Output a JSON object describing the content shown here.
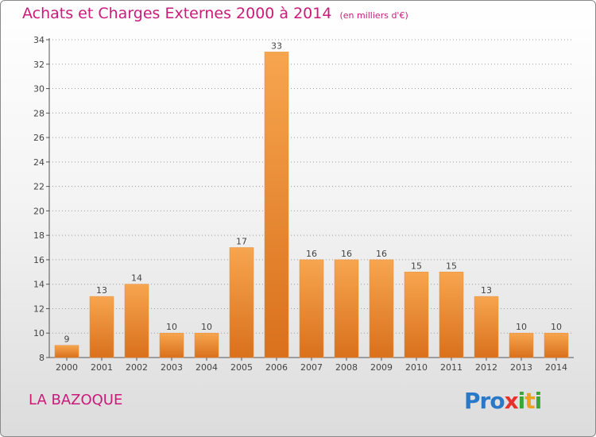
{
  "title": "Achats et Charges Externes 2000 à 2014",
  "unit_label": "(en milliers d'€)",
  "town": "LA BAZOQUE",
  "logo_text": "Proxiti",
  "colors": {
    "title": "#cc1a7a",
    "bar_light": "#f7a54f",
    "bar_dark": "#d9701c",
    "grid": "#9a9a9a"
  },
  "chart_data": {
    "type": "bar",
    "title": "Achats et Charges Externes 2000 à 2014",
    "subtitle": "(en milliers d'€)",
    "categories": [
      "2000",
      "2001",
      "2002",
      "2003",
      "2004",
      "2005",
      "2006",
      "2007",
      "2008",
      "2009",
      "2010",
      "2011",
      "2012",
      "2013",
      "2014"
    ],
    "values": [
      9,
      13,
      14,
      10,
      10,
      17,
      33,
      16,
      16,
      16,
      15,
      15,
      13,
      10,
      10
    ],
    "xlabel": "",
    "ylabel": "",
    "ylim": [
      8,
      34
    ],
    "yticks": [
      8,
      10,
      12,
      14,
      16,
      18,
      20,
      22,
      24,
      26,
      28,
      30,
      32,
      34
    ],
    "grid": "horizontal"
  }
}
